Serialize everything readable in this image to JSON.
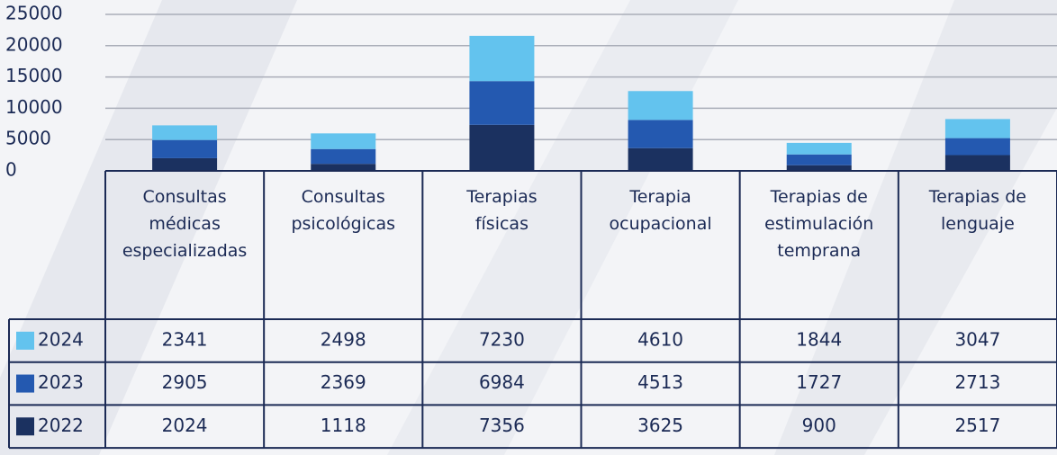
{
  "chart_data": {
    "type": "bar",
    "stacked": true,
    "categories": [
      "Consultas médicas especializadas",
      "Consultas psicológicas",
      "Terapias físicas",
      "Terapia ocupacional",
      "Terapias de estimulación temprana",
      "Terapias de lenguaje"
    ],
    "series": [
      {
        "name": "2024",
        "color": "#63c3ee",
        "values": [
          2341,
          2498,
          7230,
          4610,
          1844,
          3047
        ]
      },
      {
        "name": "2023",
        "color": "#2459b0",
        "values": [
          2905,
          2369,
          6984,
          4513,
          1727,
          2713
        ]
      },
      {
        "name": "2022",
        "color": "#1b3160",
        "values": [
          2024,
          1118,
          7356,
          3625,
          900,
          2517
        ]
      }
    ],
    "ylim": [
      0,
      25000
    ],
    "yticks": [
      0,
      5000,
      10000,
      15000,
      20000,
      25000
    ],
    "grid": true
  }
}
